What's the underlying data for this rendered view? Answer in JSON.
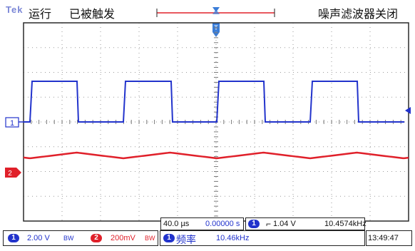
{
  "status": {
    "brand": "Tek",
    "run_state": "运行",
    "trigger_state": "已被触发",
    "noise_filter": "噪声滤波器关闭"
  },
  "channels": [
    {
      "id": "1",
      "marker": "1",
      "color": "#2233cc",
      "scale": "2.00 V",
      "bw_label": "BW"
    },
    {
      "id": "2",
      "marker": "2",
      "color": "#e0202a",
      "scale": "200mV",
      "bw_label": "BW"
    }
  ],
  "horizontal": {
    "time_per_div": "40.0 µs",
    "position": "0.00000 s"
  },
  "trigger": {
    "source": "1",
    "slope_symbol": "⌐",
    "level": "1.04 V",
    "frequency": "10.4574kHz"
  },
  "measurement": {
    "source": "1",
    "name": "频率",
    "value": "10.46kHz"
  },
  "clock": "13:49:47",
  "colors": {
    "ch1": "#2233cc",
    "ch2": "#e0202a",
    "grid": "#9a9a9a",
    "frame": "#2a2a2a"
  }
}
